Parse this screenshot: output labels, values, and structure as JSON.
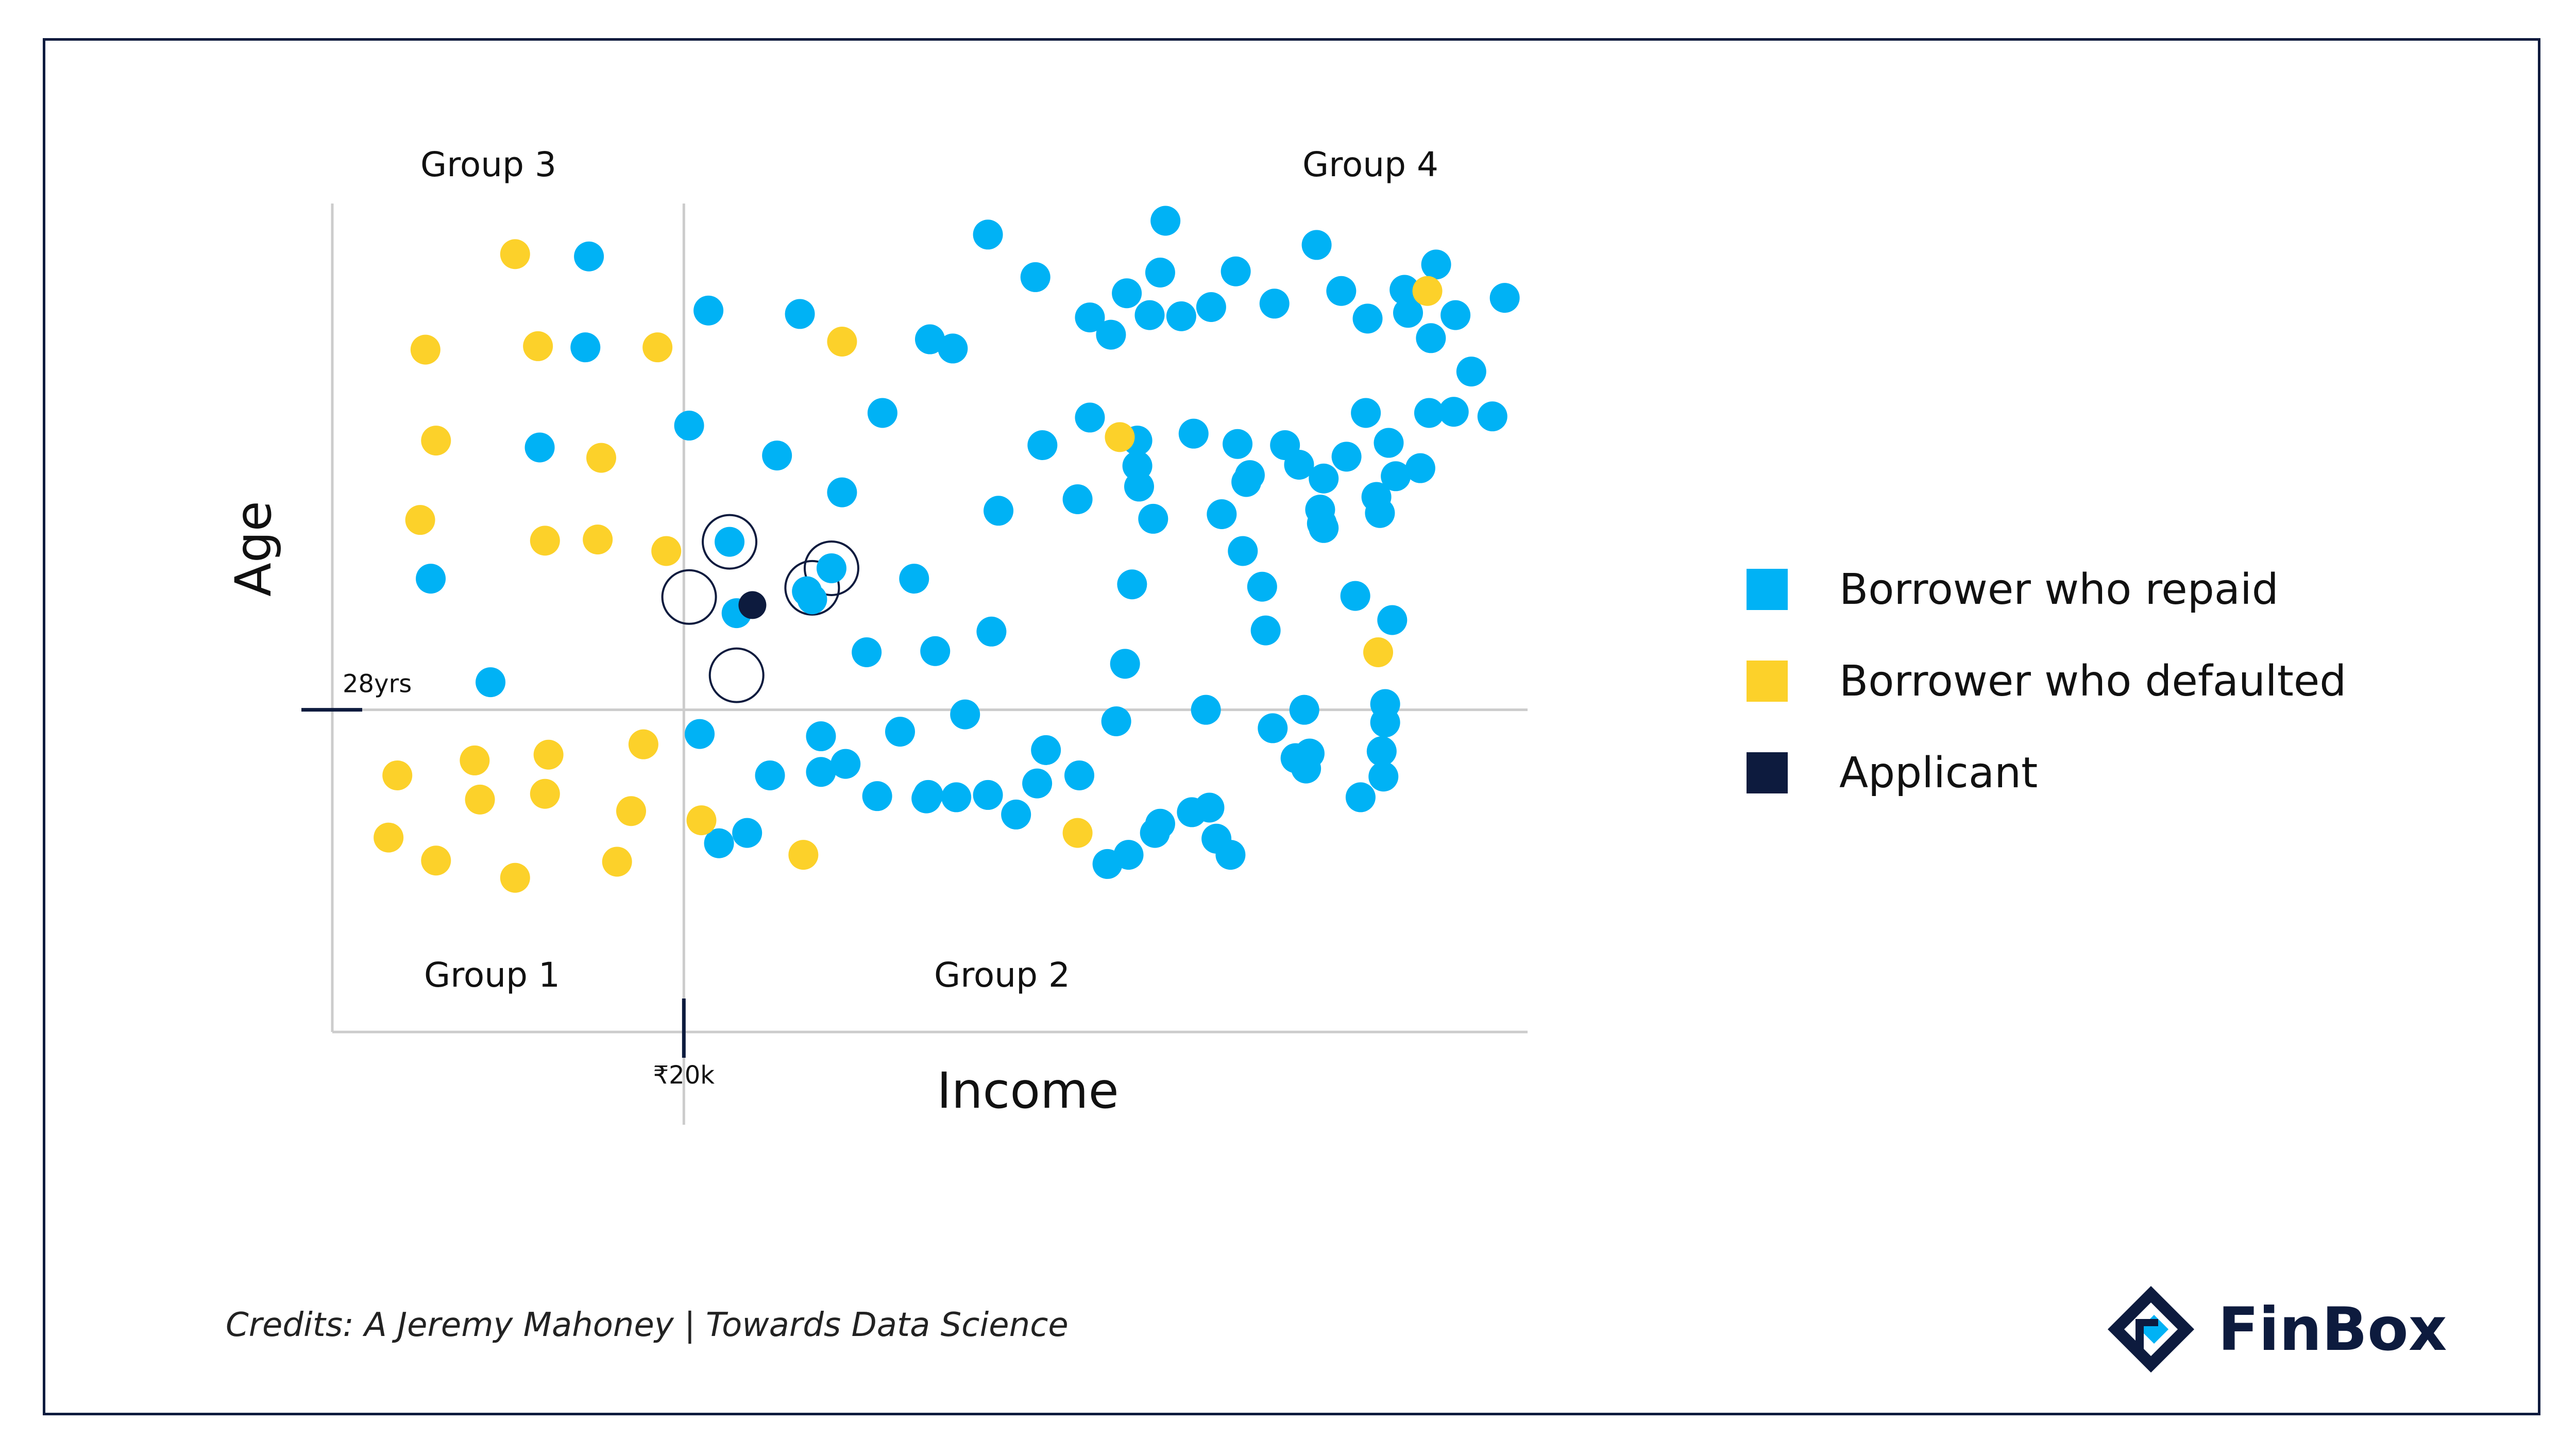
{
  "colors": {
    "repaid": "#00b2f5",
    "defaulted": "#fcd12a",
    "applicant": "#0d1b3e",
    "axis": "#cccccc",
    "tick": "#0d1b3e",
    "frame": "#0d1b3e"
  },
  "legend": {
    "repaid": "Borrower who repaid",
    "defaulted": "Borrower who defaulted",
    "applicant": "Applicant"
  },
  "credits": "Credits: A Jeremy Mahoney | Towards Data Science",
  "brand": {
    "name": "FinBox",
    "logo_icon": "finbox-logo-icon"
  },
  "chart_data": {
    "type": "scatter",
    "xlabel": "Income",
    "ylabel": "Age",
    "x_threshold": {
      "value": 20,
      "label": "₹20k"
    },
    "y_threshold": {
      "value": 28,
      "label": "28yrs"
    },
    "xlim": [
      0,
      68
    ],
    "ylim": [
      0,
      72
    ],
    "groups": [
      {
        "label": "Group 3",
        "position": "top-left"
      },
      {
        "label": "Group 4",
        "position": "top-right"
      },
      {
        "label": "Group 1",
        "position": "bottom-left"
      },
      {
        "label": "Group 2",
        "position": "bottom-right"
      }
    ],
    "grid": false,
    "legend_position": "right",
    "series": [
      {
        "name": "Borrower who repaid",
        "points": [
          [
            14.6,
            67.4
          ],
          [
            14.4,
            59.5
          ],
          [
            21.4,
            62.7
          ],
          [
            26.6,
            62.4
          ],
          [
            37.3,
            69.3
          ],
          [
            40.0,
            65.6
          ],
          [
            47.4,
            70.5
          ],
          [
            20.3,
            52.7
          ],
          [
            25.3,
            50.1
          ],
          [
            11.8,
            50.8
          ],
          [
            5.6,
            39.4
          ],
          [
            34.0,
            60.2
          ],
          [
            35.3,
            59.4
          ],
          [
            31.3,
            53.8
          ],
          [
            29.0,
            46.9
          ],
          [
            37.9,
            45.3
          ],
          [
            40.4,
            51.0
          ],
          [
            22.6,
            42.6
          ],
          [
            28.4,
            40.3
          ],
          [
            33.1,
            39.4
          ],
          [
            37.5,
            34.8
          ],
          [
            23.0,
            36.4
          ],
          [
            27.0,
            38.3
          ],
          [
            30.4,
            33.0
          ],
          [
            9.0,
            30.4
          ],
          [
            34.3,
            33.1
          ],
          [
            27.3,
            37.6
          ],
          [
            45.2,
            64.2
          ],
          [
            47.1,
            66.0
          ],
          [
            44.3,
            60.6
          ],
          [
            43.1,
            62.1
          ],
          [
            46.5,
            62.3
          ],
          [
            48.3,
            62.2
          ],
          [
            50.0,
            63.0
          ],
          [
            51.4,
            66.1
          ],
          [
            53.6,
            63.3
          ],
          [
            56.0,
            68.4
          ],
          [
            57.4,
            64.4
          ],
          [
            58.9,
            62.0
          ],
          [
            61.0,
            64.5
          ],
          [
            62.8,
            66.7
          ],
          [
            61.2,
            62.5
          ],
          [
            62.5,
            60.3
          ],
          [
            63.9,
            62.3
          ],
          [
            64.8,
            57.4
          ],
          [
            66.7,
            63.8
          ],
          [
            66.0,
            53.5
          ],
          [
            43.1,
            53.4
          ],
          [
            45.8,
            51.4
          ],
          [
            49.0,
            52.0
          ],
          [
            51.5,
            51.1
          ],
          [
            54.2,
            51.0
          ],
          [
            45.8,
            49.2
          ],
          [
            52.2,
            48.4
          ],
          [
            56.4,
            48.1
          ],
          [
            57.7,
            50.0
          ],
          [
            58.8,
            53.8
          ],
          [
            60.1,
            51.2
          ],
          [
            62.4,
            53.8
          ],
          [
            61.9,
            49.0
          ],
          [
            63.8,
            53.9
          ],
          [
            52.0,
            47.8
          ],
          [
            55.0,
            49.3
          ],
          [
            56.2,
            45.4
          ],
          [
            45.9,
            47.4
          ],
          [
            46.7,
            44.6
          ],
          [
            42.4,
            46.3
          ],
          [
            50.6,
            45.0
          ],
          [
            45.5,
            38.9
          ],
          [
            51.8,
            41.8
          ],
          [
            56.3,
            44.2
          ],
          [
            56.4,
            43.8
          ],
          [
            59.4,
            46.5
          ],
          [
            60.5,
            48.3
          ],
          [
            59.6,
            45.1
          ],
          [
            52.9,
            38.7
          ],
          [
            53.1,
            34.9
          ],
          [
            60.3,
            35.8
          ],
          [
            45.1,
            32.0
          ],
          [
            49.7,
            28.0
          ],
          [
            55.3,
            28.0
          ],
          [
            54.8,
            23.8
          ],
          [
            58.5,
            20.4
          ],
          [
            49.9,
            19.5
          ],
          [
            40.6,
            24.5
          ],
          [
            44.6,
            27.0
          ],
          [
            59.7,
            24.4
          ],
          [
            45.3,
            15.4
          ],
          [
            51.1,
            15.4
          ],
          [
            48.9,
            19.1
          ],
          [
            55.6,
            24.2
          ],
          [
            55.4,
            22.9
          ],
          [
            58.2,
            37.9
          ],
          [
            59.9,
            28.5
          ],
          [
            59.9,
            26.9
          ],
          [
            59.8,
            22.2
          ],
          [
            50.3,
            16.8
          ],
          [
            44.1,
            14.6
          ],
          [
            36.0,
            27.6
          ],
          [
            32.3,
            26.1
          ],
          [
            37.3,
            20.6
          ],
          [
            33.8,
            20.3
          ],
          [
            42.5,
            22.3
          ],
          [
            40.1,
            21.6
          ],
          [
            53.5,
            26.4
          ],
          [
            27.8,
            22.6
          ],
          [
            23.6,
            17.3
          ],
          [
            24.9,
            22.3
          ],
          [
            20.9,
            25.9
          ],
          [
            27.8,
            25.7
          ],
          [
            35.5,
            20.4
          ],
          [
            29.2,
            23.3
          ],
          [
            31.0,
            20.5
          ],
          [
            33.9,
            20.6
          ],
          [
            38.9,
            18.9
          ],
          [
            22.0,
            16.4
          ],
          [
            46.8,
            17.3
          ],
          [
            47.1,
            18.1
          ]
        ],
        "color": "#00b2f5"
      },
      {
        "name": "Borrower who defaulted",
        "points": [
          [
            10.4,
            67.6
          ],
          [
            5.3,
            59.3
          ],
          [
            11.7,
            59.6
          ],
          [
            18.5,
            59.5
          ],
          [
            29.0,
            60.0
          ],
          [
            5.9,
            51.4
          ],
          [
            15.3,
            49.9
          ],
          [
            5.0,
            44.5
          ],
          [
            12.1,
            42.7
          ],
          [
            15.1,
            42.8
          ],
          [
            19.0,
            41.8
          ],
          [
            59.5,
            33.0
          ],
          [
            44.8,
            51.7
          ],
          [
            62.3,
            64.4
          ],
          [
            3.7,
            22.3
          ],
          [
            8.1,
            23.6
          ],
          [
            12.3,
            24.1
          ],
          [
            17.7,
            25.0
          ],
          [
            8.4,
            20.2
          ],
          [
            12.1,
            20.7
          ],
          [
            17.0,
            19.2
          ],
          [
            3.2,
            16.9
          ],
          [
            5.9,
            14.9
          ],
          [
            10.4,
            13.4
          ],
          [
            16.2,
            14.8
          ],
          [
            21.0,
            18.4
          ],
          [
            26.8,
            15.4
          ],
          [
            42.4,
            17.3
          ]
        ],
        "color": "#fcd12a"
      },
      {
        "name": "Applicant",
        "points": [
          [
            23.9,
            37.1
          ]
        ],
        "color": "#0d1b3e"
      }
    ],
    "nearest_neighbors": [
      [
        22.6,
        42.6
      ],
      [
        20.3,
        37.8
      ],
      [
        28.4,
        40.3
      ],
      [
        27.3,
        38.6
      ],
      [
        23.0,
        31.0
      ]
    ]
  }
}
